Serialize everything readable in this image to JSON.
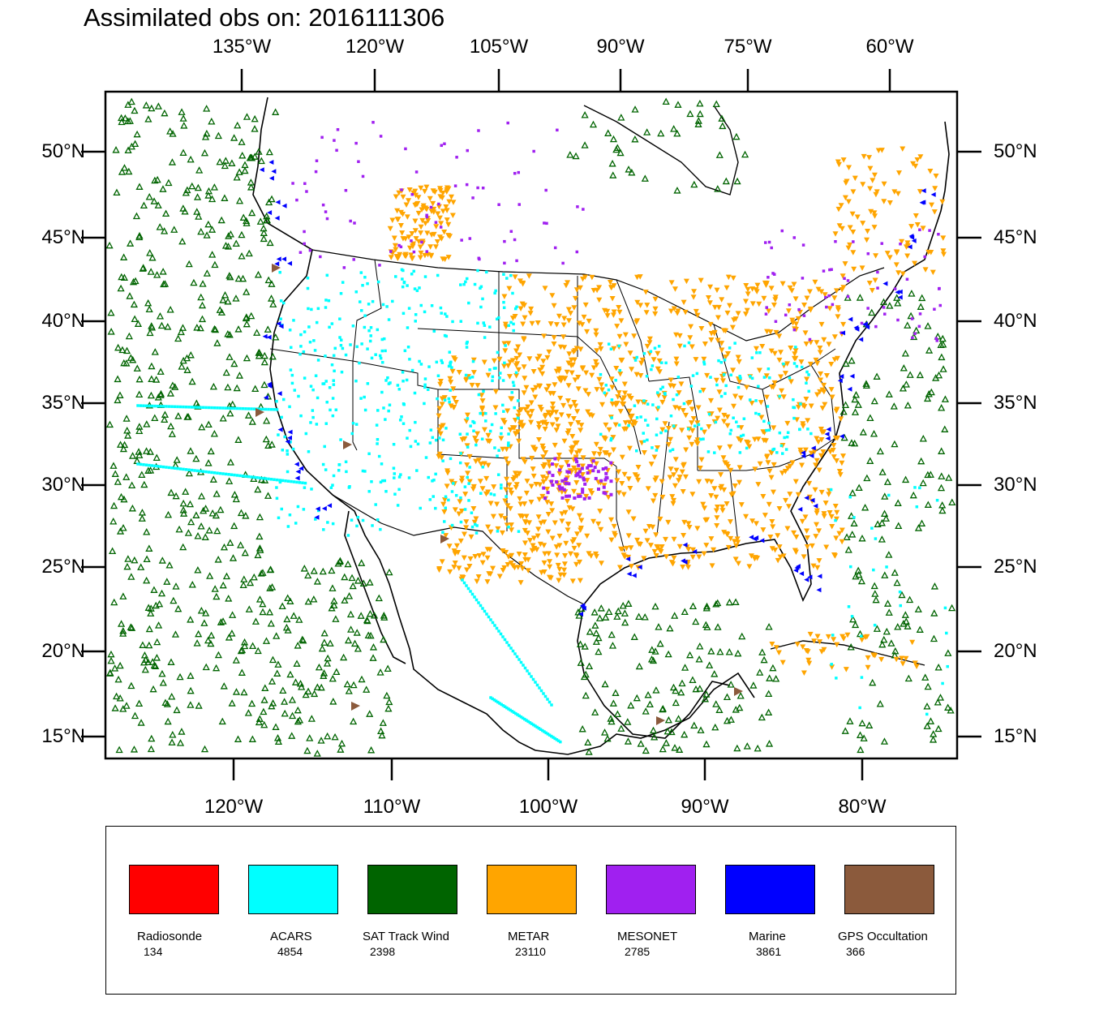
{
  "title": "Assimilated obs on: 2016111306",
  "axes": {
    "top_ticks": [
      "135°W",
      "120°W",
      "105°W",
      "90°W",
      "75°W",
      "60°W"
    ],
    "bottom_ticks": [
      "120°W",
      "110°W",
      "100°W",
      "90°W",
      "80°W"
    ],
    "left_ticks": [
      "50°N",
      "45°N",
      "40°N",
      "35°N",
      "30°N",
      "25°N",
      "20°N",
      "15°N"
    ],
    "right_ticks": [
      "50°N",
      "45°N",
      "40°N",
      "35°N",
      "30°N",
      "25°N",
      "20°N",
      "15°N"
    ]
  },
  "legend": [
    {
      "name": "Radiosonde",
      "count": "134",
      "color": "#ff0000"
    },
    {
      "name": "ACARS",
      "count": "4854",
      "color": "#00ffff"
    },
    {
      "name": "SAT Track Wind",
      "count": "2398",
      "color": "#006400"
    },
    {
      "name": "METAR",
      "count": "23110",
      "color": "#ffa500"
    },
    {
      "name": "MESONET",
      "count": "2785",
      "color": "#a020f0"
    },
    {
      "name": "Marine",
      "count": "3861",
      "color": "#0000ff"
    },
    {
      "name": "GPS Occultation",
      "count": "366",
      "color": "#8b5a3c"
    }
  ],
  "colors": {
    "frame": "#000000",
    "coast": "#000000",
    "background": "#ffffff"
  }
}
